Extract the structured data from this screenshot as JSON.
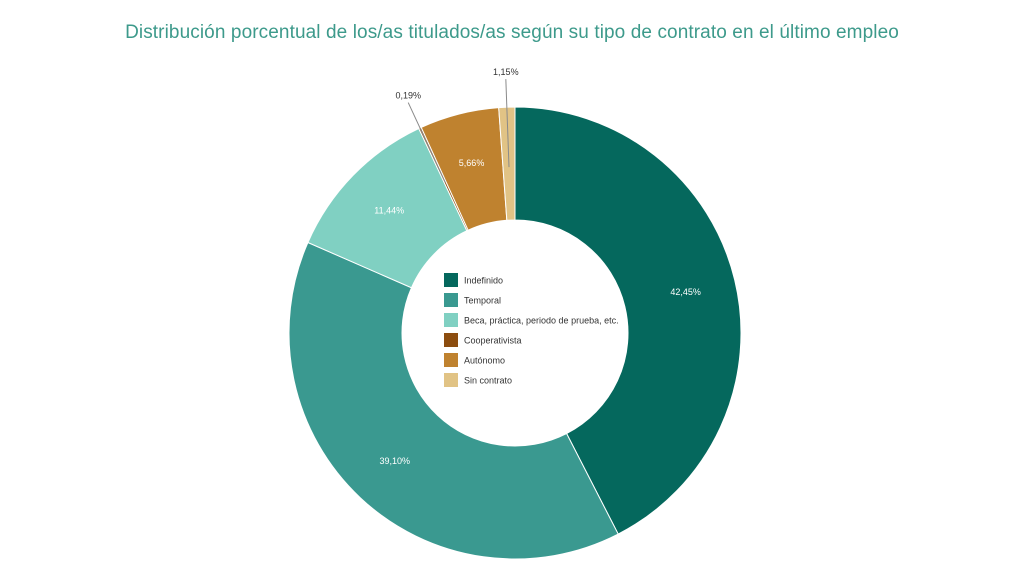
{
  "chart_data": {
    "type": "pie",
    "donut": true,
    "title": "Distribución porcentual de los/as titulados/as según su tipo de contrato en el último empleo",
    "legend_position": "center",
    "slices": [
      {
        "name": "Indefinido",
        "value": 42.45,
        "label": "42,45%",
        "color": "#05685d",
        "label_color": "#ffffff",
        "callout": false
      },
      {
        "name": "Temporal",
        "value": 39.1,
        "label": "39,10%",
        "color": "#3a9990",
        "label_color": "#ffffff",
        "callout": false
      },
      {
        "name": "Beca, práctica, periodo de prueba, etc.",
        "value": 11.44,
        "label": "11,44%",
        "color": "#80d0c2",
        "label_color": "#ffffff",
        "callout": false
      },
      {
        "name": "Cooperativista",
        "value": 0.19,
        "label": "0,19%",
        "color": "#8c4d0f",
        "label_color": "#333333",
        "callout": true
      },
      {
        "name": "Autónomo",
        "value": 5.66,
        "label": "5,66%",
        "color": "#bf822f",
        "label_color": "#ffffff",
        "callout": false
      },
      {
        "name": "Sin contrato",
        "value": 1.15,
        "label": "1,15%",
        "color": "#e1c385",
        "label_color": "#333333",
        "callout": true
      }
    ]
  }
}
